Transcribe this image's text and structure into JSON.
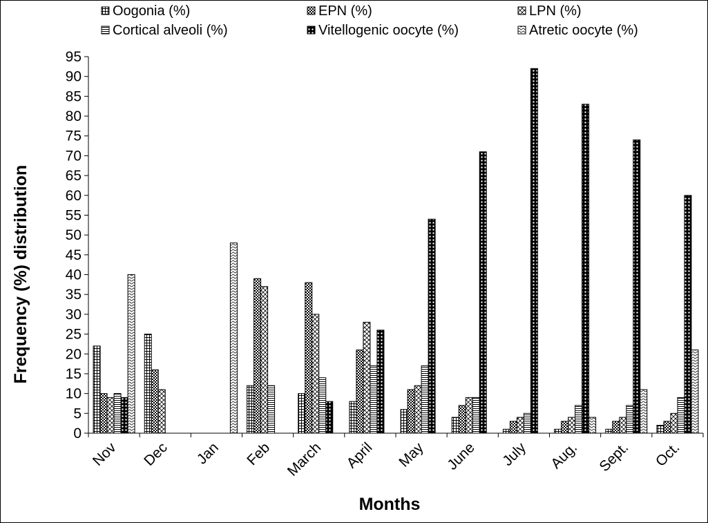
{
  "chart_data": {
    "type": "bar",
    "title": "",
    "xlabel": "Months",
    "ylabel": "Frequency (%) distribution",
    "ylim": [
      0,
      95
    ],
    "yticks": [
      0,
      5,
      10,
      15,
      20,
      25,
      30,
      35,
      40,
      45,
      50,
      55,
      60,
      65,
      70,
      75,
      80,
      85,
      90,
      95
    ],
    "grid": false,
    "legend_position": "top",
    "categories": [
      "Nov",
      "Dec",
      "Jan",
      "Feb",
      "March",
      "April",
      "May",
      "June",
      "July",
      "Aug.",
      "Sept.",
      "Oct."
    ],
    "series": [
      {
        "name": "Oogonia (%)",
        "values": [
          22,
          25,
          0,
          12,
          10,
          8,
          6,
          4,
          1,
          1,
          1,
          2
        ],
        "pattern": "grid"
      },
      {
        "name": "EPN (%)",
        "values": [
          10,
          16,
          0,
          39,
          38,
          21,
          11,
          7,
          3,
          3,
          3,
          3
        ],
        "pattern": "checker"
      },
      {
        "name": "LPN (%)",
        "values": [
          9,
          11,
          0,
          37,
          30,
          28,
          12,
          9,
          4,
          4,
          4,
          5
        ],
        "pattern": "crosshatch"
      },
      {
        "name": "Cortical alveoli (%)",
        "values": [
          10,
          0,
          0,
          12,
          14,
          17,
          17,
          9,
          5,
          7,
          7,
          9
        ],
        "pattern": "hlines"
      },
      {
        "name": "Vitellogenic oocyte (%)",
        "values": [
          9,
          0,
          0,
          0,
          8,
          26,
          54,
          71,
          92,
          83,
          74,
          60
        ],
        "pattern": "dots"
      },
      {
        "name": "Atretic oocyte (%)",
        "values": [
          40,
          0,
          48,
          0,
          0,
          0,
          0,
          0,
          0,
          4,
          11,
          21
        ],
        "pattern": "waves"
      }
    ]
  }
}
